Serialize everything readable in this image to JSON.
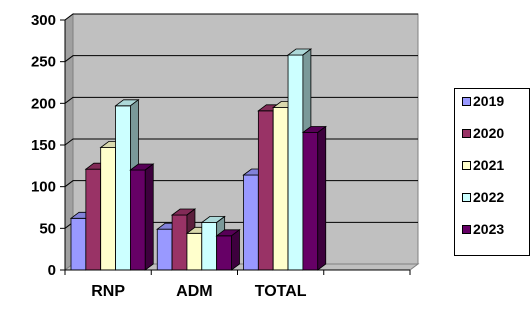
{
  "chart_data": {
    "type": "bar",
    "style": "3d-clustered-column",
    "title": "",
    "xlabel": "",
    "ylabel": "",
    "categories": [
      "RNP",
      "ADM",
      "TOTAL",
      ""
    ],
    "ylim": [
      0,
      300
    ],
    "yticks": [
      "0",
      "50",
      "100",
      "150",
      "200",
      "250",
      "300"
    ],
    "grid": true,
    "legend_position": "right",
    "series": [
      {
        "name": "2019",
        "color": "#9999ff",
        "values": [
          62,
          49,
          114,
          null
        ]
      },
      {
        "name": "2020",
        "color": "#993366",
        "values": [
          121,
          66,
          191,
          null
        ]
      },
      {
        "name": "2021",
        "color": "#ffffcc",
        "values": [
          147,
          44,
          195,
          null
        ]
      },
      {
        "name": "2022",
        "color": "#ccffff",
        "values": [
          197,
          57,
          258,
          null
        ]
      },
      {
        "name": "2023",
        "color": "#660066",
        "values": [
          120,
          41,
          165,
          null
        ]
      }
    ]
  }
}
